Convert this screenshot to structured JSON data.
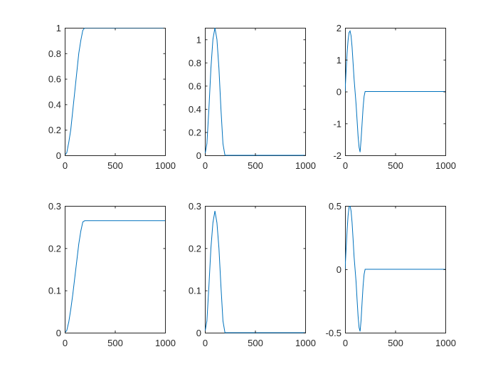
{
  "figure": {
    "background": "#ffffff"
  },
  "colors": {
    "series": "#0072BD",
    "axis": "#262626"
  },
  "chart_data": [
    {
      "type": "line",
      "xlim": [
        0,
        1000
      ],
      "ylim": [
        0,
        1
      ],
      "xticks": [
        0,
        500,
        1000
      ],
      "yticks": [
        0,
        0.2,
        0.4,
        0.6,
        0.8,
        1
      ],
      "xtick_labels": [
        "0",
        "500",
        "1000"
      ],
      "ytick_labels": [
        "0",
        "0.2",
        "0.4",
        "0.6",
        "0.8",
        "1"
      ],
      "grid": false,
      "series": [
        {
          "x": [
            0,
            20,
            40,
            60,
            80,
            100,
            120,
            140,
            160,
            180,
            200,
            400,
            600,
            800,
            1000
          ],
          "y": [
            0,
            0.02,
            0.1,
            0.2,
            0.35,
            0.5,
            0.65,
            0.8,
            0.9,
            0.98,
            1,
            1,
            1,
            1,
            1
          ]
        }
      ]
    },
    {
      "type": "line",
      "xlim": [
        0,
        1000
      ],
      "ylim": [
        0,
        1.1
      ],
      "xticks": [
        0,
        500,
        1000
      ],
      "yticks": [
        0,
        0.2,
        0.4,
        0.6,
        0.8,
        1
      ],
      "xtick_labels": [
        "0",
        "500",
        "1000"
      ],
      "ytick_labels": [
        "0",
        "0.2",
        "0.4",
        "0.6",
        "0.8",
        "1"
      ],
      "grid": false,
      "series": [
        {
          "x": [
            0,
            20,
            40,
            60,
            80,
            100,
            120,
            140,
            160,
            180,
            200,
            400,
            600,
            800,
            1000
          ],
          "y": [
            0,
            0.1,
            0.4,
            0.75,
            1.0,
            1.1,
            1.0,
            0.75,
            0.4,
            0.1,
            0,
            0,
            0,
            0,
            0
          ]
        }
      ]
    },
    {
      "type": "line",
      "xlim": [
        0,
        1000
      ],
      "ylim": [
        -2,
        2
      ],
      "xticks": [
        0,
        500,
        1000
      ],
      "yticks": [
        -2,
        -1,
        0,
        1,
        2
      ],
      "xtick_labels": [
        "0",
        "500",
        "1000"
      ],
      "ytick_labels": [
        "-2",
        "-1",
        "0",
        "1",
        "2"
      ],
      "grid": false,
      "series": [
        {
          "x": [
            0,
            10,
            20,
            30,
            40,
            50,
            60,
            70,
            80,
            90,
            100,
            110,
            120,
            130,
            140,
            150,
            160,
            170,
            180,
            190,
            200,
            400,
            600,
            800,
            1000
          ],
          "y": [
            0,
            0.6,
            1.2,
            1.6,
            1.85,
            1.9,
            1.75,
            1.4,
            0.9,
            0.4,
            0,
            -0.4,
            -0.9,
            -1.4,
            -1.75,
            -1.9,
            -1.5,
            -1.0,
            -0.5,
            -0.15,
            0,
            0,
            0,
            0,
            0
          ]
        }
      ]
    },
    {
      "type": "line",
      "xlim": [
        0,
        1000
      ],
      "ylim": [
        0,
        0.3
      ],
      "xticks": [
        0,
        500,
        1000
      ],
      "yticks": [
        0,
        0.1,
        0.2,
        0.3
      ],
      "xtick_labels": [
        "0",
        "500",
        "1000"
      ],
      "ytick_labels": [
        "0",
        "0.1",
        "0.2",
        "0.3"
      ],
      "grid": false,
      "series": [
        {
          "x": [
            0,
            20,
            40,
            60,
            80,
            100,
            120,
            140,
            160,
            180,
            200,
            400,
            600,
            800,
            1000
          ],
          "y": [
            0,
            0.005,
            0.025,
            0.055,
            0.09,
            0.13,
            0.17,
            0.21,
            0.24,
            0.262,
            0.265,
            0.265,
            0.265,
            0.265,
            0.265
          ]
        }
      ]
    },
    {
      "type": "line",
      "xlim": [
        0,
        1000
      ],
      "ylim": [
        0,
        0.3
      ],
      "xticks": [
        0,
        500,
        1000
      ],
      "yticks": [
        0,
        0.1,
        0.2,
        0.3
      ],
      "xtick_labels": [
        "0",
        "500",
        "1000"
      ],
      "ytick_labels": [
        "0",
        "0.1",
        "0.2",
        "0.3"
      ],
      "grid": false,
      "series": [
        {
          "x": [
            0,
            20,
            40,
            60,
            80,
            100,
            120,
            140,
            160,
            180,
            200,
            400,
            600,
            800,
            1000
          ],
          "y": [
            0,
            0.028,
            0.11,
            0.2,
            0.26,
            0.288,
            0.26,
            0.2,
            0.11,
            0.028,
            0,
            0,
            0,
            0,
            0
          ]
        }
      ]
    },
    {
      "type": "line",
      "xlim": [
        0,
        1000
      ],
      "ylim": [
        -0.5,
        0.5
      ],
      "xticks": [
        0,
        500,
        1000
      ],
      "yticks": [
        -0.5,
        0,
        0.5
      ],
      "xtick_labels": [
        "0",
        "500",
        "1000"
      ],
      "ytick_labels": [
        "-0.5",
        "0",
        "0.5"
      ],
      "grid": false,
      "series": [
        {
          "x": [
            0,
            10,
            20,
            30,
            40,
            50,
            60,
            70,
            80,
            90,
            100,
            110,
            120,
            130,
            140,
            150,
            160,
            170,
            180,
            190,
            200,
            400,
            600,
            800,
            1000
          ],
          "y": [
            0,
            0.15,
            0.3,
            0.42,
            0.49,
            0.5,
            0.46,
            0.37,
            0.24,
            0.1,
            0,
            -0.1,
            -0.24,
            -0.37,
            -0.46,
            -0.49,
            -0.4,
            -0.26,
            -0.13,
            -0.04,
            0,
            0,
            0,
            0,
            0
          ]
        }
      ]
    }
  ]
}
